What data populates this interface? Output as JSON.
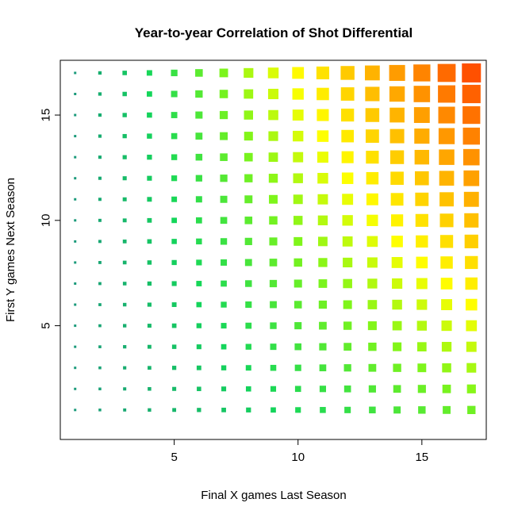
{
  "chart_data": {
    "type": "scatter",
    "title": "Year-to-year Correlation of Shot Differential",
    "xlabel": "Final X games Last Season",
    "ylabel": "First Y games Next Season",
    "xlim": [
      0.4,
      17.6
    ],
    "ylim": [
      -0.4,
      17.6
    ],
    "xticks": [
      5,
      10,
      15
    ],
    "yticks": [
      5,
      10,
      15
    ],
    "grid": false,
    "legend": "none",
    "marker": "filled-square",
    "x": [
      1,
      17
    ],
    "y": [
      1,
      17
    ],
    "encoding": "marker size and color both increase with the correlation value; small teal squares at low X, large orange-red squares at high X and high Y",
    "colors": {
      "low": "#1a9a7a",
      "low_mid": "#14d65a",
      "mid": "#7ff51a",
      "mid_high": "#ffff00",
      "high": "#ffbe00",
      "highest": "#ff5000"
    }
  }
}
